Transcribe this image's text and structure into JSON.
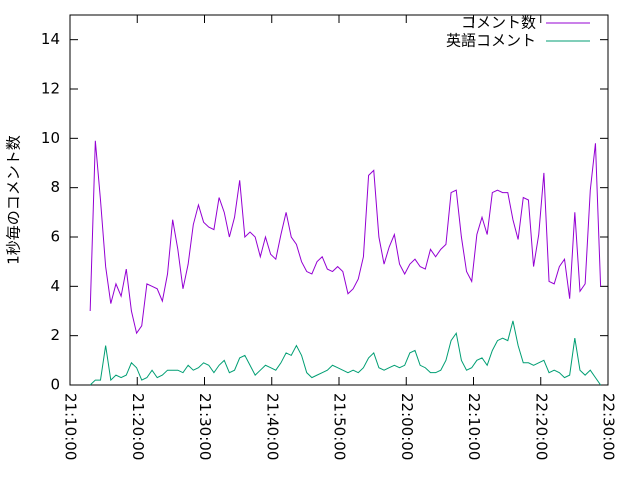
{
  "chart_data": {
    "type": "line",
    "y_label": "1秒毎のコメント数",
    "x": [
      "21:13:00",
      "21:13:46",
      "21:14:32",
      "21:15:18",
      "21:16:04",
      "21:16:50",
      "21:17:36",
      "21:18:22",
      "21:19:08",
      "21:19:54",
      "21:20:40",
      "21:21:26",
      "21:22:12",
      "21:22:58",
      "21:23:44",
      "21:24:30",
      "21:25:16",
      "21:26:02",
      "21:26:48",
      "21:27:34",
      "21:28:20",
      "21:29:06",
      "21:29:52",
      "21:30:38",
      "21:31:24",
      "21:32:10",
      "21:32:56",
      "21:33:42",
      "21:34:28",
      "21:35:14",
      "21:36:00",
      "21:36:46",
      "21:37:32",
      "21:38:18",
      "21:39:04",
      "21:39:50",
      "21:40:36",
      "21:41:22",
      "21:42:08",
      "21:42:54",
      "21:43:40",
      "21:44:26",
      "21:45:12",
      "21:45:58",
      "21:46:44",
      "21:47:30",
      "21:48:16",
      "21:49:02",
      "21:49:48",
      "21:50:34",
      "21:51:20",
      "21:52:06",
      "21:52:52",
      "21:53:38",
      "21:54:24",
      "21:55:10",
      "21:55:56",
      "21:56:42",
      "21:57:28",
      "21:58:14",
      "21:59:00",
      "21:59:46",
      "22:00:32",
      "22:01:18",
      "22:02:04",
      "22:02:50",
      "22:03:36",
      "22:04:22",
      "22:05:08",
      "22:05:54",
      "22:06:40",
      "22:07:26",
      "22:08:12",
      "22:08:58",
      "22:09:44",
      "22:10:30",
      "22:11:16",
      "22:12:02",
      "22:12:48",
      "22:13:34",
      "22:14:20",
      "22:15:06",
      "22:15:52",
      "22:16:38",
      "22:17:24",
      "22:18:10",
      "22:18:56",
      "22:19:42",
      "22:20:28",
      "22:21:14",
      "22:22:00",
      "22:22:46",
      "22:23:32",
      "22:24:18",
      "22:25:04",
      "22:25:50",
      "22:26:36",
      "22:27:22",
      "22:28:08",
      "22:28:54"
    ],
    "series": [
      {
        "name": "コメント数",
        "color": "#9400d3",
        "values": [
          3.0,
          9.9,
          7.5,
          4.8,
          3.3,
          4.1,
          3.6,
          4.7,
          3.0,
          2.1,
          2.4,
          4.1,
          4.0,
          3.9,
          3.4,
          4.5,
          6.7,
          5.5,
          3.9,
          4.9,
          6.5,
          7.3,
          6.6,
          6.4,
          6.3,
          7.6,
          7.0,
          6.0,
          6.8,
          8.3,
          6.0,
          6.2,
          6.0,
          5.2,
          6.0,
          5.3,
          5.1,
          6.1,
          7.0,
          6.0,
          5.7,
          5.0,
          4.6,
          4.5,
          5.0,
          5.2,
          4.7,
          4.6,
          4.8,
          4.6,
          3.7,
          3.9,
          4.3,
          5.2,
          8.5,
          8.7,
          6.0,
          4.9,
          5.6,
          6.1,
          4.9,
          4.5,
          4.9,
          5.1,
          4.8,
          4.7,
          5.5,
          5.2,
          5.5,
          5.7,
          7.8,
          7.9,
          6.0,
          4.6,
          4.2,
          6.1,
          6.8,
          6.1,
          7.8,
          7.9,
          7.8,
          7.8,
          6.7,
          5.9,
          7.6,
          7.5,
          4.8,
          6.1,
          8.6,
          4.2,
          4.1,
          4.8,
          5.1,
          3.5,
          7.0,
          3.8,
          4.1,
          7.9,
          9.8,
          4.0
        ]
      },
      {
        "name": "英語コメント",
        "color": "#009e73",
        "values": [
          0.0,
          0.2,
          0.2,
          1.6,
          0.2,
          0.4,
          0.3,
          0.4,
          0.9,
          0.7,
          0.2,
          0.3,
          0.6,
          0.3,
          0.4,
          0.6,
          0.6,
          0.6,
          0.5,
          0.8,
          0.6,
          0.7,
          0.9,
          0.8,
          0.5,
          0.8,
          1.0,
          0.5,
          0.6,
          1.1,
          1.2,
          0.8,
          0.4,
          0.6,
          0.8,
          0.7,
          0.6,
          0.9,
          1.3,
          1.2,
          1.6,
          1.2,
          0.5,
          0.3,
          0.4,
          0.5,
          0.6,
          0.8,
          0.7,
          0.6,
          0.5,
          0.6,
          0.5,
          0.7,
          1.1,
          1.3,
          0.7,
          0.6,
          0.7,
          0.8,
          0.7,
          0.8,
          1.3,
          1.4,
          0.8,
          0.7,
          0.5,
          0.5,
          0.6,
          1.0,
          1.8,
          2.1,
          1.0,
          0.6,
          0.7,
          1.0,
          1.1,
          0.8,
          1.4,
          1.8,
          1.9,
          1.8,
          2.6,
          1.6,
          0.9,
          0.9,
          0.8,
          0.9,
          1.0,
          0.5,
          0.6,
          0.5,
          0.3,
          0.4,
          1.9,
          0.6,
          0.4,
          0.6,
          0.3,
          0.0
        ]
      }
    ],
    "xlim": [
      "21:10:00",
      "22:30:00"
    ],
    "xticks": [
      "21:10:00",
      "21:20:00",
      "21:30:00",
      "21:40:00",
      "21:50:00",
      "22:00:00",
      "22:10:00",
      "22:20:00",
      "22:30:00"
    ],
    "ylim": [
      0,
      15
    ],
    "yticks": [
      0,
      2,
      4,
      6,
      8,
      10,
      12,
      14
    ],
    "legend": "top-right"
  }
}
